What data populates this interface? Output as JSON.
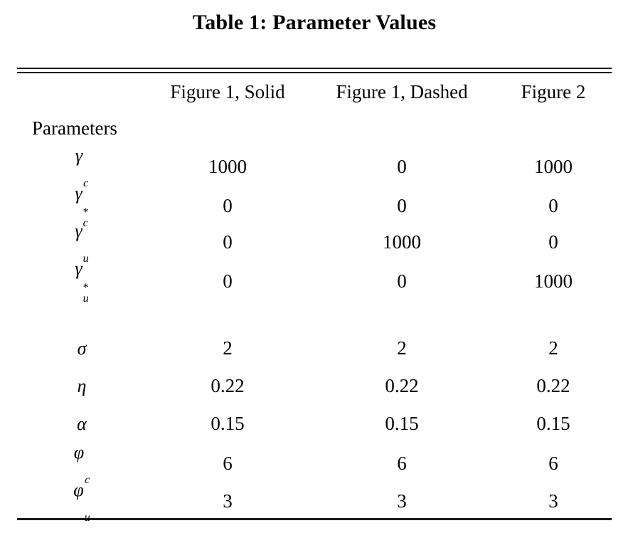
{
  "title": "Table 1: Parameter Values",
  "table": {
    "columns": [
      "Figure 1, Solid",
      "Figure 1, Dashed",
      "Figure 2"
    ],
    "group_label": "Parameters",
    "rows": [
      {
        "symbol": "γ",
        "sup": "",
        "sub": "c",
        "values": [
          "1000",
          "0",
          "1000"
        ],
        "gap_after": false
      },
      {
        "symbol": "γ",
        "sup": "*",
        "sub": "c",
        "values": [
          "0",
          "0",
          "0"
        ],
        "gap_after": false
      },
      {
        "symbol": "γ",
        "sup": "",
        "sub": "u",
        "values": [
          "0",
          "1000",
          "0"
        ],
        "gap_after": false
      },
      {
        "symbol": "γ",
        "sup": "*",
        "sub": "u",
        "values": [
          "0",
          "0",
          "1000"
        ],
        "gap_after": true
      },
      {
        "symbol": "σ",
        "sup": "",
        "sub": "",
        "values": [
          "2",
          "2",
          "2"
        ],
        "gap_after": false
      },
      {
        "symbol": "η",
        "sup": "",
        "sub": "",
        "values": [
          "0.22",
          "0.22",
          "0.22"
        ],
        "gap_after": false
      },
      {
        "symbol": "α",
        "sup": "",
        "sub": "",
        "values": [
          "0.15",
          "0.15",
          "0.15"
        ],
        "gap_after": false
      },
      {
        "symbol": "φ",
        "sup": "",
        "sub": "c",
        "values": [
          "6",
          "6",
          "6"
        ],
        "gap_after": false
      },
      {
        "symbol": "φ",
        "sup": "",
        "sub": "u",
        "values": [
          "3",
          "3",
          "3"
        ],
        "gap_after": false
      }
    ]
  },
  "colors": {
    "text": "#000000",
    "background": "#ffffff",
    "rule": "#1a1a1a"
  }
}
